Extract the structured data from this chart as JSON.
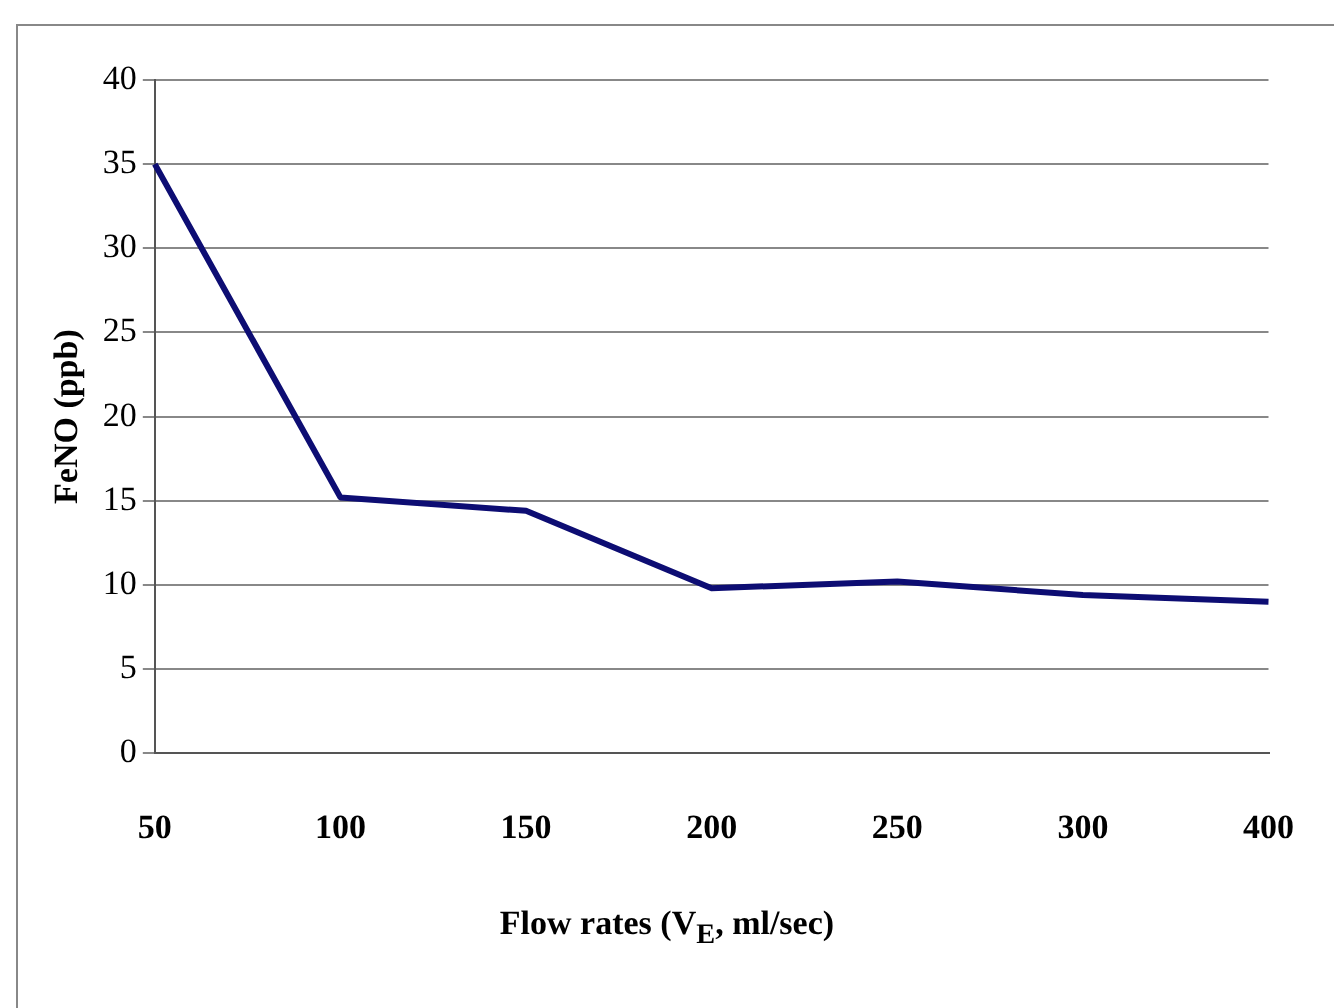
{
  "chart_data": {
    "type": "line",
    "xlabel": "Flow rates (V$_{E}$, ml/sec)",
    "ylabel": "FeNO (ppb)",
    "categories": [
      "50",
      "100",
      "150",
      "200",
      "250",
      "300",
      "400"
    ],
    "series": [
      {
        "color": "#0d0d73",
        "values": [
          35,
          15.2,
          14.4,
          9.8,
          10.2,
          9.4,
          9.0
        ]
      }
    ],
    "ylim": [
      0,
      40
    ],
    "yticks": [
      0,
      5,
      10,
      15,
      20,
      25,
      30,
      35,
      40
    ],
    "grid": "y",
    "legend": false,
    "line_style": "solid"
  }
}
